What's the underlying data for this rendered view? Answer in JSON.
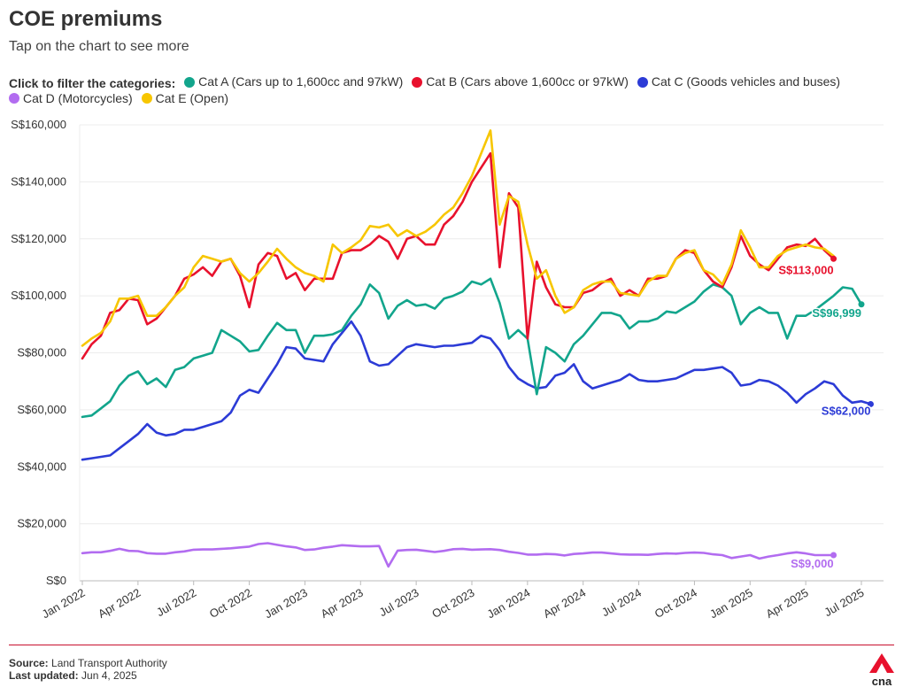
{
  "title": "COE premiums",
  "subtitle": "Tap on the chart to see more",
  "filter_lead": "Click to filter the categories:",
  "legend": [
    {
      "label": "Cat A (Cars up to 1,600cc and 97kW)",
      "color": "#12a58c"
    },
    {
      "label": "Cat B (Cars above 1,600cc or 97kW)",
      "color": "#e8112d"
    },
    {
      "label": "Cat C (Goods vehicles and buses)",
      "color": "#2c3bd6"
    },
    {
      "label": "Cat D (Motorcycles)",
      "color": "#b26cf0"
    },
    {
      "label": "Cat E (Open)",
      "color": "#f7c600"
    }
  ],
  "footer": {
    "source_label": "Source:",
    "source": "Land Transport Authority",
    "updated_label": "Last updated:",
    "updated": "Jun 4, 2025"
  },
  "logo_text": "cna",
  "chart_data": {
    "type": "line",
    "x_start": "2022-01",
    "x_step": "half-month (2 bidding exercises per month)",
    "ylim": [
      0,
      160000
    ],
    "y_ticks": [
      0,
      20000,
      40000,
      60000,
      80000,
      100000,
      120000,
      140000,
      160000
    ],
    "y_tick_labels": [
      "S$0",
      "S$20,000",
      "S$40,000",
      "S$60,000",
      "S$80,000",
      "S$100,000",
      "S$120,000",
      "S$140,000",
      "S$160,000"
    ],
    "x_ticks": [
      {
        "label": "Jan 2022",
        "index": 0
      },
      {
        "label": "Apr 2022",
        "index": 6
      },
      {
        "label": "Jul 2022",
        "index": 12
      },
      {
        "label": "Oct 2022",
        "index": 18
      },
      {
        "label": "Jan 2023",
        "index": 24
      },
      {
        "label": "Apr 2023",
        "index": 30
      },
      {
        "label": "Jul 2023",
        "index": 36
      },
      {
        "label": "Oct 2023",
        "index": 42
      },
      {
        "label": "Jan 2024",
        "index": 48
      },
      {
        "label": "Apr 2024",
        "index": 54
      },
      {
        "label": "Jul 2024",
        "index": 60
      },
      {
        "label": "Oct 2024",
        "index": 66
      },
      {
        "label": "Jan 2025",
        "index": 72
      },
      {
        "label": "Apr 2025",
        "index": 78
      },
      {
        "label": "Jul 2025",
        "index": 84
      }
    ],
    "grid": "horizontal",
    "series": [
      {
        "name": "Cat A (Cars up to 1,600cc and 97kW)",
        "color": "#12a58c",
        "end_label": "S$96,999",
        "values": [
          57500,
          58000,
          60500,
          63000,
          68500,
          72000,
          73500,
          69000,
          71000,
          68000,
          74000,
          75000,
          78000,
          79000,
          80000,
          88000,
          86000,
          84000,
          80500,
          81000,
          86000,
          90500,
          88000,
          88000,
          80000,
          86000,
          86000,
          86500,
          88000,
          93000,
          97000,
          104000,
          101000,
          92000,
          96500,
          98500,
          96500,
          97000,
          95500,
          99000,
          100000,
          101500,
          105000,
          104000,
          106000,
          97500,
          85000,
          88000,
          85000,
          65500,
          82000,
          80000,
          77000,
          83000,
          86000,
          90000,
          94000,
          94000,
          93000,
          88500,
          91000,
          91000,
          92000,
          94500,
          94000,
          96000,
          98000,
          101500,
          104000,
          103000,
          100000,
          90000,
          94000,
          96000,
          94000,
          94000,
          85000,
          93000,
          93000,
          95000,
          97500,
          100000,
          103000,
          102500,
          96999
        ]
      },
      {
        "name": "Cat B (Cars above 1,600cc or 97kW)",
        "color": "#e8112d",
        "end_label": "S$113,000",
        "values": [
          78000,
          83000,
          86000,
          94000,
          95000,
          99000,
          98500,
          90000,
          92000,
          96000,
          100000,
          106000,
          107500,
          110000,
          107000,
          112000,
          113000,
          107000,
          96000,
          111000,
          115000,
          114000,
          106000,
          108000,
          102000,
          106000,
          106000,
          106000,
          115000,
          116000,
          116000,
          118000,
          121000,
          119000,
          113000,
          120000,
          121000,
          118000,
          118000,
          125000,
          128000,
          133000,
          140000,
          145000,
          150000,
          110000,
          136000,
          131000,
          85000,
          112000,
          103000,
          97000,
          96000,
          96000,
          101000,
          102000,
          104500,
          106000,
          100000,
          102000,
          100000,
          106000,
          106000,
          107000,
          113000,
          116000,
          115000,
          109000,
          105000,
          103000,
          110000,
          121000,
          114000,
          111000,
          109000,
          113000,
          117000,
          118000,
          117500,
          120000,
          116000,
          113000
        ]
      },
      {
        "name": "Cat C (Goods vehicles and buses)",
        "color": "#2c3bd6",
        "end_label": "S$62,000",
        "values": [
          42500,
          43000,
          43500,
          44000,
          46500,
          49000,
          51500,
          55000,
          52000,
          51000,
          51500,
          53000,
          53000,
          54000,
          55000,
          56000,
          59000,
          65000,
          67000,
          66000,
          71000,
          76000,
          82000,
          81500,
          78000,
          77500,
          77000,
          83000,
          87000,
          91000,
          86000,
          77000,
          75500,
          76000,
          79000,
          82000,
          83000,
          82500,
          82000,
          82500,
          82500,
          83000,
          83500,
          86000,
          85000,
          81000,
          75000,
          71000,
          69000,
          67500,
          68000,
          72000,
          73000,
          76000,
          70000,
          67500,
          68500,
          69500,
          70500,
          72500,
          70500,
          70000,
          70000,
          70500,
          71000,
          72500,
          74000,
          74000,
          74500,
          75000,
          73000,
          68500,
          69000,
          70500,
          70000,
          68500,
          66000,
          62500,
          65500,
          67500,
          70000,
          69000,
          65000,
          62500,
          63000,
          62000
        ]
      },
      {
        "name": "Cat D (Motorcycles)",
        "color": "#b26cf0",
        "end_label": "S$9,000",
        "values": [
          9700,
          10000,
          10000,
          10500,
          11200,
          10500,
          10400,
          9700,
          9500,
          9500,
          10000,
          10300,
          10900,
          11000,
          11000,
          11200,
          11400,
          11700,
          12000,
          12900,
          13200,
          12600,
          12100,
          11700,
          10800,
          11000,
          11600,
          12000,
          12500,
          12300,
          12100,
          12100,
          12200,
          5000,
          10600,
          10800,
          10900,
          10500,
          10100,
          10500,
          11100,
          11200,
          10900,
          11000,
          11100,
          10800,
          10200,
          9800,
          9200,
          9200,
          9400,
          9300,
          8900,
          9400,
          9600,
          9900,
          9900,
          9600,
          9300,
          9200,
          9200,
          9100,
          9400,
          9600,
          9500,
          9800,
          9900,
          9800,
          9300,
          9000,
          8000,
          8500,
          9000,
          7800,
          8500,
          9000,
          9600,
          10000,
          9600,
          9000,
          9000,
          9000
        ]
      },
      {
        "name": "Cat E (Open)",
        "color": "#f7c600",
        "end_label": "",
        "values": [
          82500,
          85000,
          87000,
          91000,
          99000,
          99000,
          100000,
          93000,
          93000,
          96000,
          100000,
          103000,
          110000,
          114000,
          113000,
          112000,
          113000,
          108000,
          105000,
          108000,
          112000,
          116500,
          113000,
          110000,
          108000,
          107000,
          105000,
          118000,
          115000,
          117000,
          119500,
          124500,
          124000,
          125000,
          121000,
          123000,
          121000,
          122500,
          125000,
          128500,
          131000,
          136000,
          142000,
          150000,
          158000,
          125000,
          135000,
          133000,
          118000,
          106000,
          109000,
          100000,
          94000,
          96000,
          102000,
          104000,
          105000,
          105000,
          101000,
          100500,
          100000,
          105000,
          107000,
          107000,
          113000,
          115000,
          116000,
          109000,
          107500,
          104000,
          111000,
          123000,
          117000,
          110000,
          110000,
          114000,
          116000,
          117000,
          118000,
          117000,
          116500,
          114000
        ]
      }
    ]
  }
}
